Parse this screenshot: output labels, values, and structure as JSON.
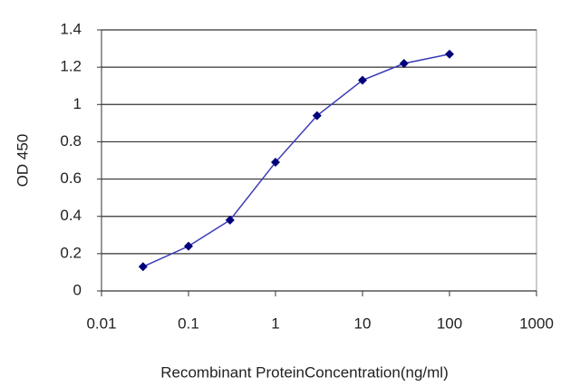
{
  "chart_data": {
    "type": "line",
    "xlabel": "Recombinant ProteinConcentration(ng/ml)",
    "ylabel": "OD 450",
    "x": [
      0.03,
      0.1,
      0.3,
      1,
      3,
      10,
      30,
      100
    ],
    "values": [
      0.13,
      0.24,
      0.38,
      0.69,
      0.94,
      1.13,
      1.22,
      1.27
    ],
    "color": "#3a3ab8",
    "marker_color": "#00007a",
    "xscale": "log",
    "xlim": [
      0.01,
      1000
    ],
    "xticks": [
      0.01,
      0.1,
      1,
      10,
      100,
      1000
    ],
    "ylim": [
      0,
      1.4
    ],
    "yticks": [
      0,
      0.2,
      0.4,
      0.6,
      0.8,
      1,
      1.2,
      1.4
    ],
    "grid": true
  }
}
